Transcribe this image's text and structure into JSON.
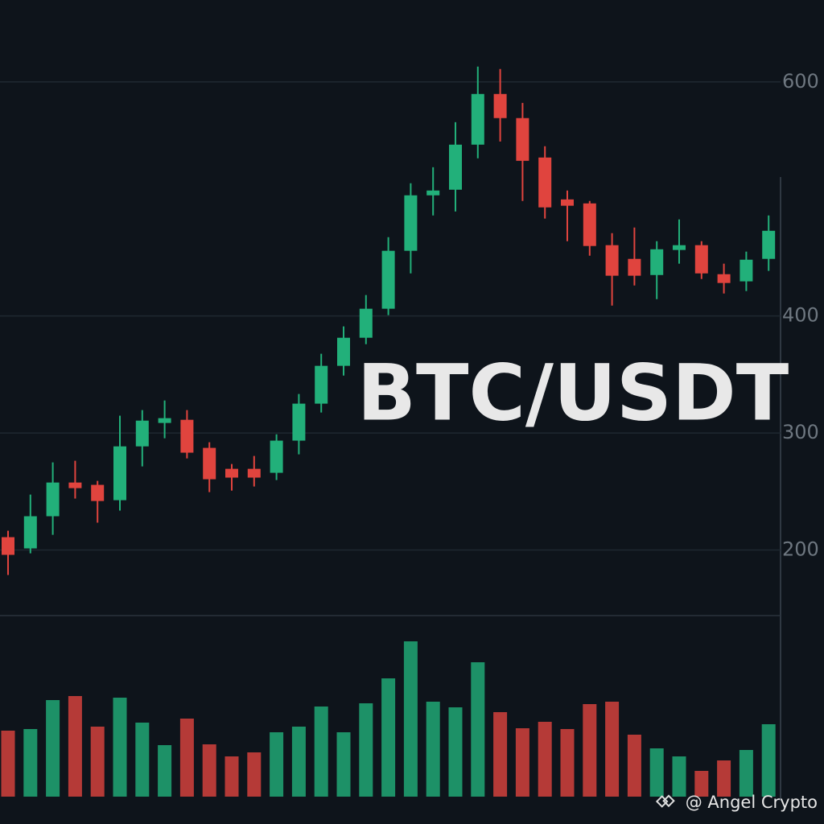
{
  "chart_data": {
    "type": "candlestick",
    "symbol": "BTC/USDT",
    "watermark": "@ Angel Crypto",
    "up_color": "#22b07a",
    "down_color": "#e0443e",
    "ylim": [
      144,
      670
    ],
    "yticks": [
      200,
      300,
      400,
      600
    ],
    "grid": true,
    "open": [
      211.0,
      201.4,
      228.9,
      257.7,
      255.7,
      242.6,
      288.6,
      308.6,
      311.3,
      287.3,
      269.4,
      269.4,
      266.0,
      293.5,
      325.1,
      357.4,
      381.4,
      406.2,
      455.7,
      503.1,
      507.9,
      546.4,
      589.7,
      569.1,
      535.4,
      499.6,
      496.2,
      460.5,
      448.8,
      435.0,
      456.4,
      460.5,
      435.7,
      429.6,
      448.8
    ],
    "high": [
      216.5,
      247.4,
      274.9,
      276.3,
      259.1,
      314.8,
      319.6,
      327.8,
      319.6,
      292.1,
      273.5,
      280.4,
      298.9,
      333.3,
      367.7,
      391.1,
      417.9,
      467.3,
      513.4,
      527.1,
      565.6,
      613.1,
      611.0,
      582.1,
      545.0,
      507.2,
      498.3,
      470.8,
      475.6,
      463.9,
      482.5,
      463.9,
      444.7,
      455.0,
      485.9
    ],
    "low": [
      178.7,
      197.2,
      213.0,
      244.0,
      223.4,
      233.7,
      271.5,
      295.5,
      278.3,
      249.5,
      250.8,
      254.3,
      259.8,
      281.8,
      317.5,
      349.1,
      375.9,
      400.7,
      436.4,
      485.9,
      489.3,
      534.7,
      549.1,
      498.3,
      483.2,
      463.9,
      451.5,
      408.9,
      426.1,
      414.4,
      444.7,
      431.6,
      419.2,
      421.3,
      438.5
    ],
    "close": [
      195.9,
      228.9,
      257.7,
      252.9,
      241.9,
      288.6,
      310.6,
      312.7,
      283.2,
      260.5,
      261.9,
      261.9,
      293.5,
      325.1,
      357.4,
      381.4,
      406.2,
      455.7,
      503.1,
      507.2,
      546.4,
      589.7,
      569.1,
      532.6,
      492.8,
      494.2,
      459.8,
      434.4,
      434.4,
      457.0,
      460.5,
      436.4,
      428.2,
      448.1,
      472.8
    ],
    "volume": [
      82,
      84,
      120,
      125,
      87,
      123,
      92,
      64,
      97,
      65,
      50,
      55,
      80,
      87,
      112,
      80,
      116,
      147,
      193,
      118,
      111,
      167,
      105,
      85,
      93,
      84,
      115,
      118,
      77,
      60,
      50,
      32,
      45,
      58,
      90
    ],
    "volume_ylim": [
      0,
      220
    ]
  }
}
